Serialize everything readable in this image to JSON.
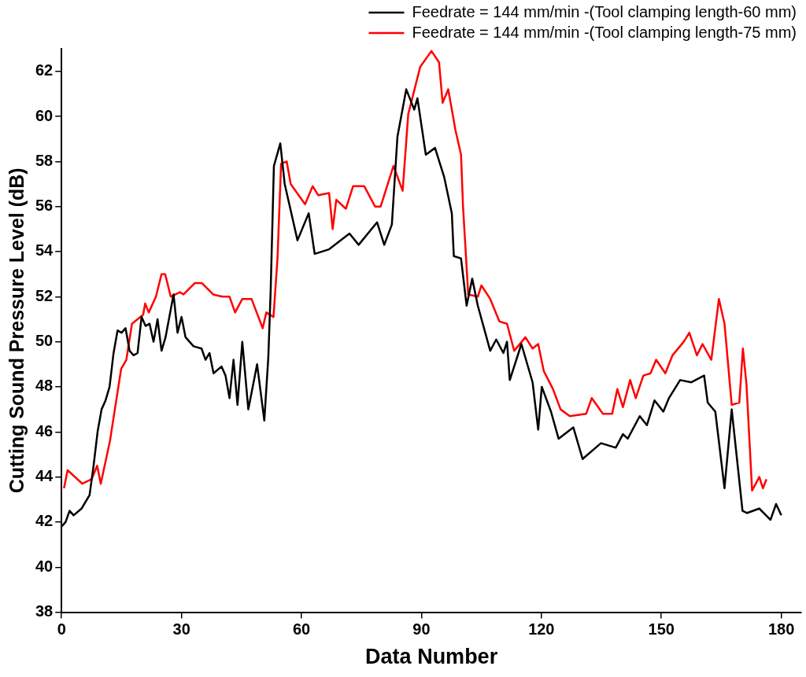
{
  "chart_data": {
    "type": "line",
    "xlabel": "Data Number",
    "ylabel": "Cutting Sound Pressure Level (dB)",
    "xlim": [
      0,
      185
    ],
    "xticks": [
      0,
      30,
      60,
      90,
      120,
      150,
      180
    ],
    "ylim": [
      38,
      63
    ],
    "yticks": [
      38,
      40,
      42,
      44,
      46,
      48,
      50,
      52,
      54,
      56,
      58,
      60,
      62
    ],
    "grid": false,
    "legend": "top right",
    "marker": "none",
    "line_style": "solid",
    "series": [
      {
        "name": "Feedrate = 144 mm/min -(Tool clamping length-60 mm)",
        "color": "#000000",
        "x": [
          0,
          1,
          2,
          3,
          5,
          7,
          8,
          9,
          10,
          11,
          12,
          13,
          14,
          15,
          16,
          17,
          18,
          19,
          20,
          21,
          22,
          23,
          24,
          25,
          26,
          28,
          29,
          30,
          31,
          33,
          35,
          36,
          37,
          38,
          40,
          41,
          42,
          43,
          44,
          45.2,
          46.7,
          48.9,
          50.7,
          51.7,
          52.3,
          53.1,
          54.7,
          55.8,
          59,
          61.8,
          63.3,
          66.9,
          72,
          74.3,
          78.9,
          80.7,
          82.6,
          84,
          86.2,
          88.2,
          89,
          91.1,
          93.4,
          95.7,
          97.6,
          98.1,
          99.9,
          101.3,
          102.7,
          104.1,
          107.2,
          108.7,
          110.5,
          111.4,
          112.1,
          115,
          117.8,
          119.2,
          120.1,
          122.4,
          124.3,
          128,
          130.3,
          134.9,
          138.6,
          140.4,
          141.6,
          144.6,
          146.4,
          148.3,
          150.5,
          151.9,
          154.7,
          157.5,
          160.7,
          161.6,
          163.5,
          165.8,
          167.6,
          170.3,
          171.4,
          174.5,
          177.3,
          178.7,
          180
        ],
        "values": [
          41.8,
          42,
          42.5,
          42.3,
          42.6,
          43.2,
          44.5,
          46,
          47,
          47.4,
          48,
          49.5,
          50.5,
          50.4,
          50.6,
          49.6,
          49.4,
          49.5,
          51.1,
          50.7,
          50.8,
          50,
          51,
          49.6,
          50.2,
          52.1,
          50.4,
          51.1,
          50.2,
          49.8,
          49.7,
          49.2,
          49.5,
          48.6,
          48.9,
          48.5,
          47.5,
          49.2,
          47.2,
          50,
          47,
          49,
          46.5,
          49.3,
          52.3,
          57.8,
          58.8,
          57,
          54.5,
          55.7,
          53.9,
          54.1,
          54.8,
          54.3,
          55.3,
          54.3,
          55.2,
          59.1,
          61.2,
          60.3,
          60.8,
          58.3,
          58.6,
          57.3,
          55.7,
          53.8,
          53.7,
          51.6,
          52.8,
          51.6,
          49.6,
          50.1,
          49.5,
          50,
          48.3,
          49.9,
          48.2,
          46.1,
          48,
          46.9,
          45.7,
          46.2,
          44.8,
          45.5,
          45.3,
          45.9,
          45.7,
          46.7,
          46.3,
          47.4,
          46.9,
          47.5,
          48.3,
          48.2,
          48.5,
          47.3,
          46.9,
          43.5,
          47,
          42.5,
          42.4,
          42.6,
          42.1,
          42.8,
          42.3
        ]
      },
      {
        "name": "Feedrate = 144 mm/min -(Tool clamping length-75 mm)",
        "color": "#ff0000",
        "x": [
          0.6,
          1.5,
          5.2,
          7.5,
          8.9,
          9.8,
          12.1,
          14.9,
          16.2,
          17.6,
          20.4,
          20.9,
          21.8,
          23.6,
          25,
          25.9,
          27.3,
          29.6,
          30.5,
          33.3,
          35.1,
          37.9,
          40.2,
          42,
          43.4,
          45.2,
          47.5,
          50.3,
          51.2,
          53,
          54,
          54.9,
          56.3,
          57.3,
          60.9,
          62.8,
          64.2,
          66.9,
          67.8,
          68.7,
          71.1,
          72.9,
          75.7,
          78.4,
          79.8,
          83,
          85.3,
          86.7,
          89.7,
          92.5,
          94.4,
          95.3,
          96.7,
          98.5,
          99.9,
          100.4,
          101.7,
          104.1,
          105,
          107.2,
          109.5,
          111.4,
          113.2,
          116,
          117.8,
          119.2,
          120.6,
          122.9,
          124.8,
          127.1,
          131.2,
          132.6,
          135.4,
          137.7,
          139,
          140.4,
          142.2,
          143.6,
          145.5,
          147.3,
          148.7,
          151,
          152.8,
          155.6,
          157,
          158.9,
          160.3,
          162.5,
          164.4,
          165.8,
          167.6,
          169.5,
          170.4,
          171.3,
          172.7,
          174.5,
          175.4,
          176.3
        ],
        "values": [
          43.5,
          44.3,
          43.7,
          43.9,
          44.5,
          43.7,
          45.6,
          48.8,
          49.2,
          50.8,
          51.2,
          51.7,
          51.3,
          52,
          53,
          53,
          52,
          52.2,
          52.1,
          52.6,
          52.6,
          52.1,
          52,
          52,
          51.3,
          51.9,
          51.9,
          50.6,
          51.3,
          51.1,
          53.7,
          57.9,
          58,
          57,
          56.1,
          56.9,
          56.5,
          56.6,
          55,
          56.3,
          55.9,
          56.9,
          56.9,
          56,
          56,
          57.8,
          56.7,
          60.1,
          62.2,
          62.9,
          62.4,
          60.6,
          61.2,
          59.4,
          58.3,
          56,
          52.1,
          52,
          52.5,
          51.9,
          50.9,
          50.8,
          49.6,
          50.2,
          49.7,
          49.9,
          48.7,
          47.9,
          47,
          46.7,
          46.8,
          47.5,
          46.8,
          46.8,
          47.9,
          47.1,
          48.3,
          47.5,
          48.5,
          48.6,
          49.2,
          48.6,
          49.4,
          50,
          50.4,
          49.4,
          49.9,
          49.2,
          51.9,
          50.8,
          47.2,
          47.3,
          49.7,
          48.1,
          43.4,
          44,
          43.5,
          43.9
        ]
      }
    ]
  }
}
